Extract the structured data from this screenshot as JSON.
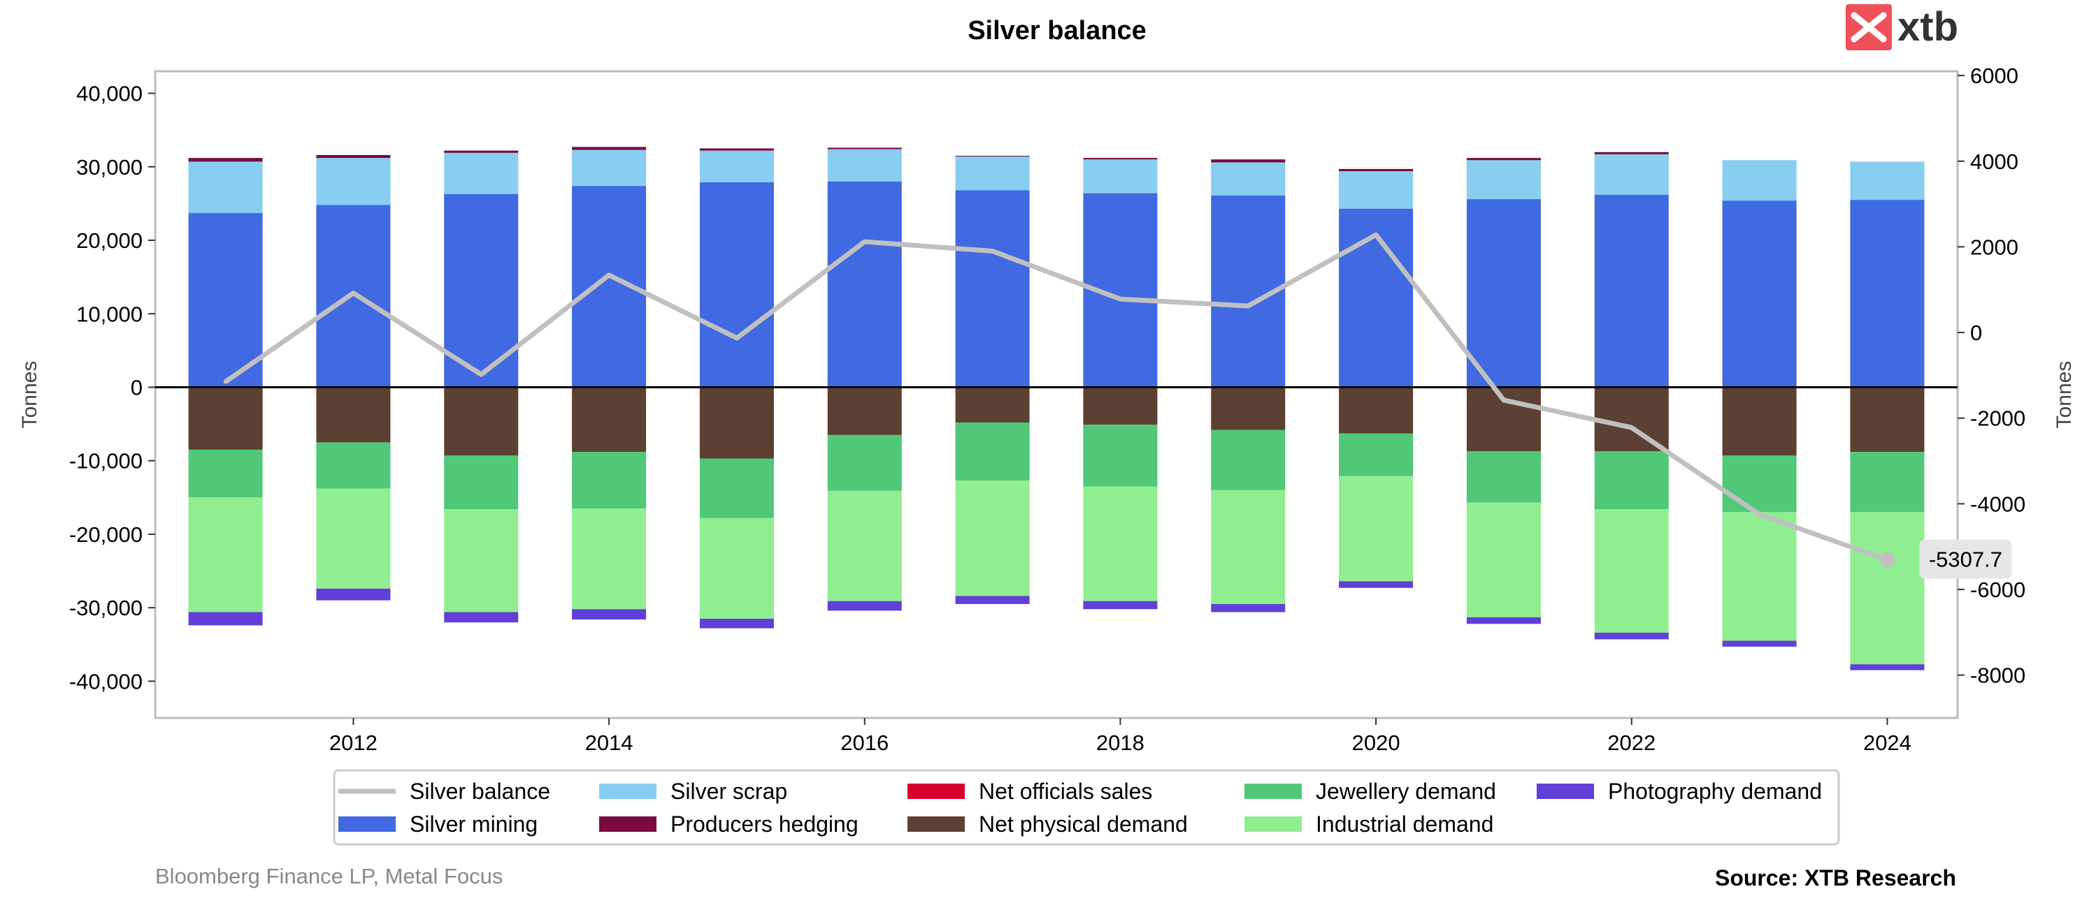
{
  "brand": {
    "logo_text": "xtb",
    "logo_color": "#f0505a"
  },
  "footer": {
    "source_left": "Bloomberg Finance LP, Metal Focus",
    "source_right": "Source: XTB Research"
  },
  "chart_data": {
    "type": "bar",
    "stacked": true,
    "title": "Silver balance",
    "ylabel_left": "Tonnes",
    "ylabel_right": "Tonnes",
    "x": [
      2011,
      2012,
      2013,
      2014,
      2015,
      2016,
      2017,
      2018,
      2019,
      2020,
      2021,
      2022,
      2023,
      2024
    ],
    "x_ticks": [
      "2012",
      "2014",
      "2016",
      "2018",
      "2020",
      "2022",
      "2024"
    ],
    "x_tick_values": [
      2012,
      2014,
      2016,
      2018,
      2020,
      2022,
      2024
    ],
    "ylim_left": [
      -45000,
      43000
    ],
    "y_ticks_left": [
      "40,000",
      "30,000",
      "20,000",
      "10,000",
      "0",
      "-10,000",
      "-20,000",
      "-30,000",
      "-40,000"
    ],
    "y_tick_values_left": [
      40000,
      30000,
      20000,
      10000,
      0,
      -10000,
      -20000,
      -30000,
      -40000
    ],
    "ylim_right": [
      -9000,
      6100
    ],
    "y_ticks_right": [
      "6000",
      "4000",
      "2000",
      "0",
      "-2000",
      "-4000",
      "-6000",
      "-8000"
    ],
    "y_tick_values_right": [
      6000,
      4000,
      2000,
      0,
      -2000,
      -4000,
      -6000,
      -8000
    ],
    "grid": false,
    "legend_position": "bottom",
    "series": [
      {
        "name": "Silver mining",
        "axis": "left",
        "stack": "positive",
        "color": "#4169e1",
        "values": [
          23700,
          24800,
          26300,
          27400,
          27900,
          28000,
          26800,
          26400,
          26100,
          24300,
          25600,
          26200,
          25400,
          25500
        ]
      },
      {
        "name": "Silver scrap",
        "axis": "left",
        "stack": "positive",
        "color": "#87cef0",
        "values": [
          7000,
          6400,
          5600,
          4900,
          4300,
          4400,
          4600,
          4600,
          4500,
          5100,
          5300,
          5500,
          5500,
          5200
        ]
      },
      {
        "name": "Producers hedging",
        "axis": "left",
        "stack": "positive",
        "color": "#7b0a3e",
        "values": [
          500,
          400,
          300,
          400,
          300,
          200,
          100,
          200,
          400,
          300,
          300,
          300,
          0,
          0
        ]
      },
      {
        "name": "Net officials sales",
        "axis": "left",
        "stack": "positive",
        "color": "#d6002f",
        "values": [
          0,
          0,
          0,
          0,
          0,
          0,
          0,
          0,
          0,
          0,
          0,
          0,
          0,
          0
        ]
      },
      {
        "name": "Net physical demand",
        "axis": "left",
        "stack": "negative",
        "color": "#5c4033",
        "values": [
          8500,
          7500,
          9300,
          8800,
          9700,
          6500,
          4800,
          5100,
          5800,
          6300,
          8700,
          8700,
          9300,
          8800
        ]
      },
      {
        "name": "Jewellery demand",
        "axis": "left",
        "stack": "negative",
        "color": "#50c878",
        "values": [
          6500,
          6300,
          7300,
          7700,
          8100,
          7600,
          7900,
          8400,
          8200,
          5800,
          7000,
          7900,
          7700,
          8200
        ]
      },
      {
        "name": "Industrial demand",
        "axis": "left",
        "stack": "negative",
        "color": "#90ee90",
        "values": [
          15600,
          13600,
          14000,
          13700,
          13700,
          15000,
          15700,
          15600,
          15500,
          14300,
          15600,
          16800,
          17500,
          20700
        ]
      },
      {
        "name": "Photography demand",
        "axis": "left",
        "stack": "negative",
        "color": "#6040d8",
        "values": [
          1800,
          1600,
          1400,
          1400,
          1300,
          1300,
          1100,
          1100,
          1100,
          900,
          900,
          900,
          800,
          800
        ]
      },
      {
        "name": "Silver balance",
        "axis": "right",
        "type": "line",
        "color": "#c0c0c0",
        "values": [
          -1150,
          920,
          -980,
          1340,
          -130,
          2120,
          1900,
          780,
          620,
          2280,
          -1580,
          -2220,
          -4250,
          -5307.7
        ]
      }
    ],
    "legend": [
      "Silver balance",
      "Silver scrap",
      "Net officials sales",
      "Jewellery demand",
      "Photography demand",
      "Silver mining",
      "Producers hedging",
      "Net physical demand",
      "Industrial demand"
    ],
    "annotation": {
      "text": "-5307.7",
      "x": 2024,
      "y": -5307.7
    }
  }
}
